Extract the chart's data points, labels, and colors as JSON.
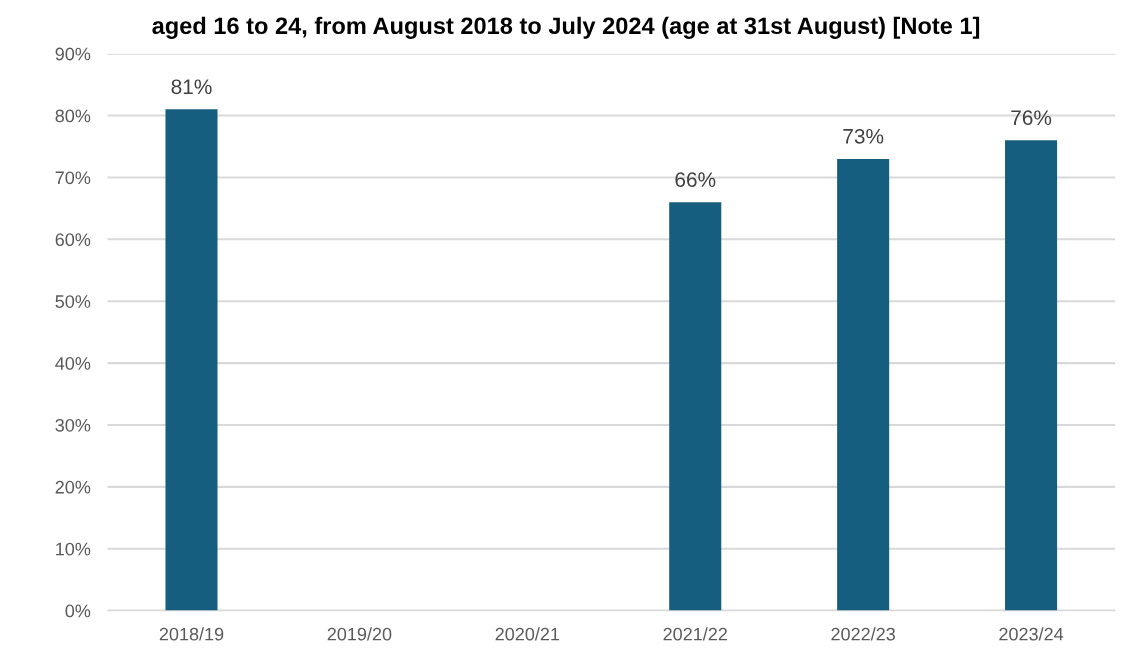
{
  "chart_data": {
    "type": "bar",
    "title": "aged 16 to 24, from August 2018 to July 2024 (age at 31st August) [Note 1]",
    "categories": [
      "2018/19",
      "2019/20",
      "2020/21",
      "2021/22",
      "2022/23",
      "2023/24"
    ],
    "values": [
      81,
      null,
      null,
      66,
      73,
      76
    ],
    "value_labels": [
      "81%",
      null,
      null,
      "66%",
      "73%",
      "76%"
    ],
    "color": "#165e80",
    "ylim": [
      0,
      90
    ],
    "yticks": [
      {
        "value": 0,
        "label": "0%"
      },
      {
        "value": 10,
        "label": "10%"
      },
      {
        "value": 20,
        "label": "20%"
      },
      {
        "value": 30,
        "label": "30%"
      },
      {
        "value": 40,
        "label": "40%"
      },
      {
        "value": 50,
        "label": "50%"
      },
      {
        "value": 60,
        "label": "60%"
      },
      {
        "value": 70,
        "label": "70%"
      },
      {
        "value": 80,
        "label": "80%"
      },
      {
        "value": 90,
        "label": "90%"
      }
    ],
    "grid": "y"
  }
}
